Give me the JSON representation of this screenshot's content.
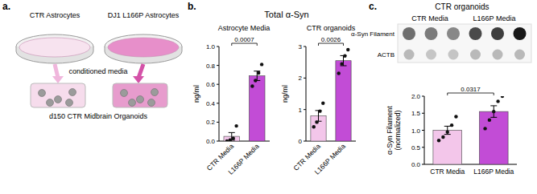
{
  "figure": {
    "panel_labels": [
      "a.",
      "b.",
      "c."
    ],
    "schematic": {
      "dishes": [
        "CTR Astrocytes",
        "DJ1 L166P Astrocytes"
      ],
      "arrow_label": "conditioned media",
      "organoids": "d150 CTR Midbrain Organoids"
    },
    "panel_b_title": "Total α-Syn",
    "panel_c_title": "CTR organoids",
    "blot": {
      "columns": [
        "CTR Media",
        "L166P Media"
      ],
      "rows": [
        "α-Syn Filament",
        "ACTB"
      ],
      "intensity": [
        [
          0.55,
          0.5,
          0.45,
          0.7,
          0.75,
          0.9
        ],
        [
          0.25,
          0.2,
          0.2,
          0.25,
          0.25,
          0.25
        ]
      ]
    }
  },
  "chart_data": [
    {
      "type": "bar",
      "title": "Astrocyte Media",
      "ylabel": [
        "ng/ml"
      ],
      "categories": [
        "CTR Media",
        "L166P Media"
      ],
      "values": [
        0.05,
        0.69
      ],
      "errors": [
        0.04,
        0.05
      ],
      "points": [
        [
          0.0,
          0.01,
          0.03,
          0.16
        ],
        [
          0.58,
          0.64,
          0.72,
          0.81
        ]
      ],
      "colors": [
        "#f3c6ea",
        "#c24cd6"
      ],
      "ylim": [
        0,
        1.0
      ],
      "yticks": [
        {
          "value": 0,
          "label": "0.0"
        },
        {
          "value": 0.2,
          "label": "0.2"
        },
        {
          "value": 0.4,
          "label": "0.4"
        },
        {
          "value": 0.6,
          "label": "0.6"
        },
        {
          "value": 0.8,
          "label": "0.8"
        },
        {
          "value": 1.0,
          "label": "1.0"
        }
      ],
      "annotations": [
        "0.0007"
      ]
    },
    {
      "type": "bar",
      "title": "CTR organoids",
      "ylabel": [
        "ng/ml"
      ],
      "categories": [
        "CTR Media",
        "L166P Media"
      ],
      "values": [
        0.8,
        2.55
      ],
      "errors": [
        0.17,
        0.16
      ],
      "points": [
        [
          0.45,
          0.6,
          0.95,
          1.2
        ],
        [
          2.15,
          2.45,
          2.7,
          2.9
        ]
      ],
      "colors": [
        "#f3c6ea",
        "#c24cd6"
      ],
      "ylim": [
        0,
        3
      ],
      "yticks": [
        0,
        1,
        2,
        3
      ],
      "annotations": [
        "0.0026"
      ]
    },
    {
      "type": "bar",
      "ylabel": [
        "α-Syn Filament",
        "(normalized)"
      ],
      "categories": [
        "CTR Media",
        "L166P Media"
      ],
      "values": [
        1.0,
        1.55
      ],
      "errors": [
        0.12,
        0.17
      ],
      "points": [
        [
          0.7,
          0.8,
          0.95,
          1.15,
          1.4
        ],
        [
          1.05,
          1.3,
          1.55,
          1.85,
          2.0
        ]
      ],
      "colors": [
        "#f3c6ea",
        "#c24cd6"
      ],
      "ylim": [
        0,
        2.0
      ],
      "yticks": [
        {
          "value": 0,
          "label": "0.0"
        },
        {
          "value": 0.5,
          "label": "0.5"
        },
        {
          "value": 1.0,
          "label": "1.0"
        },
        {
          "value": 1.5,
          "label": "1.5"
        },
        {
          "value": 2.0,
          "label": "2.0"
        }
      ],
      "annotations": [
        "0.0317"
      ]
    }
  ]
}
